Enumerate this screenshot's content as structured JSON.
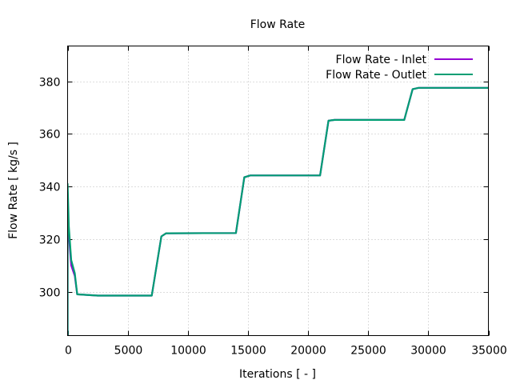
{
  "chart_data": {
    "type": "line",
    "title": "Flow Rate",
    "xlabel": "Iterations [ - ]",
    "ylabel": "Flow Rate [ kg/s ]",
    "xlim": [
      0,
      35000
    ],
    "ylim": [
      283.3,
      393.4
    ],
    "xticks": [
      0,
      5000,
      10000,
      15000,
      20000,
      25000,
      30000,
      35000
    ],
    "yticks": [
      300,
      320,
      340,
      360,
      380
    ],
    "grid": true,
    "legend": "top-right",
    "series": [
      {
        "name": "Flow Rate - Inlet",
        "color": "#9400d3",
        "x": [
          0,
          0,
          100,
          300,
          600,
          800,
          2500,
          7000,
          7800,
          8200,
          14000,
          14700,
          15200,
          21000,
          21700,
          22200,
          28000,
          28700,
          29200,
          35000
        ],
        "y": [
          250,
          335,
          322,
          310,
          306,
          299,
          298.5,
          298.5,
          321,
          322.2,
          322.3,
          343.5,
          344.2,
          344.2,
          365,
          365.3,
          365.3,
          377,
          377.5,
          377.5
        ]
      },
      {
        "name": "Flow Rate - Outlet",
        "color": "#009e73",
        "x": [
          0,
          0,
          100,
          300,
          600,
          800,
          2500,
          7000,
          7800,
          8200,
          14000,
          14700,
          15200,
          21000,
          21700,
          22200,
          28000,
          28700,
          29200,
          35000
        ],
        "y": [
          250,
          341,
          325,
          312,
          307,
          299,
          298.5,
          298.5,
          321,
          322.2,
          322.3,
          343.5,
          344.2,
          344.2,
          365,
          365.3,
          365.3,
          377,
          377.5,
          377.5
        ]
      }
    ]
  }
}
